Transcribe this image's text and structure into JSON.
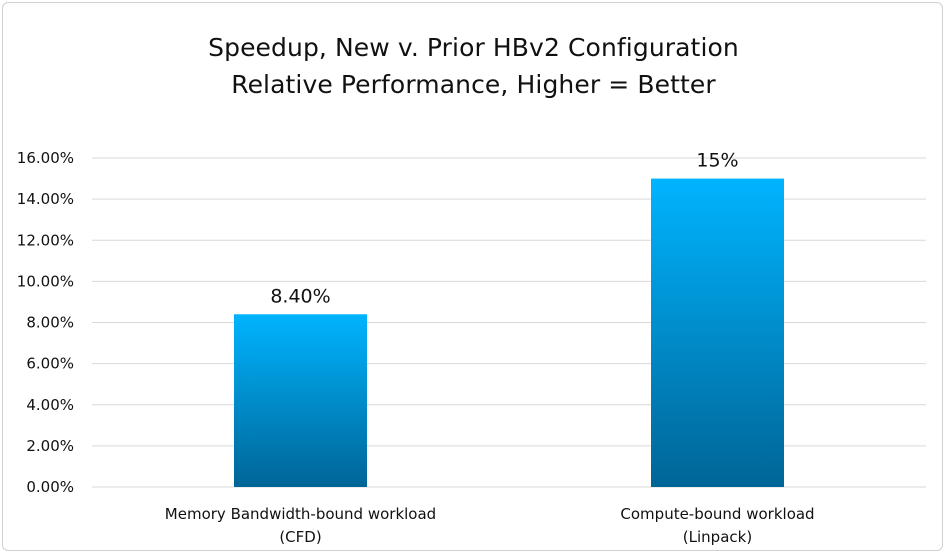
{
  "chart_data": {
    "type": "bar",
    "title": "Speedup, New v. Prior HBv2 Configuration",
    "subtitle": "Relative Performance, Higher = Better",
    "categories": [
      [
        "Memory Bandwidth-bound workload",
        "(CFD)"
      ],
      [
        "Compute-bound workload",
        "(Linpack)"
      ]
    ],
    "values": [
      8.4,
      15
    ],
    "data_labels": [
      "8.40%",
      "15%"
    ],
    "ylim": [
      0,
      16
    ],
    "y_ticks": [
      0,
      2,
      4,
      6,
      8,
      10,
      12,
      14,
      16
    ],
    "y_tick_labels": [
      "0.00%",
      "2.00%",
      "4.00%",
      "6.00%",
      "8.00%",
      "10.00%",
      "12.00%",
      "14.00%",
      "16.00%"
    ],
    "grid": true,
    "legend": false,
    "bar_color_top": "#00b4ff",
    "bar_color_bottom": "#006596",
    "grid_color": "#d9d9d9"
  }
}
